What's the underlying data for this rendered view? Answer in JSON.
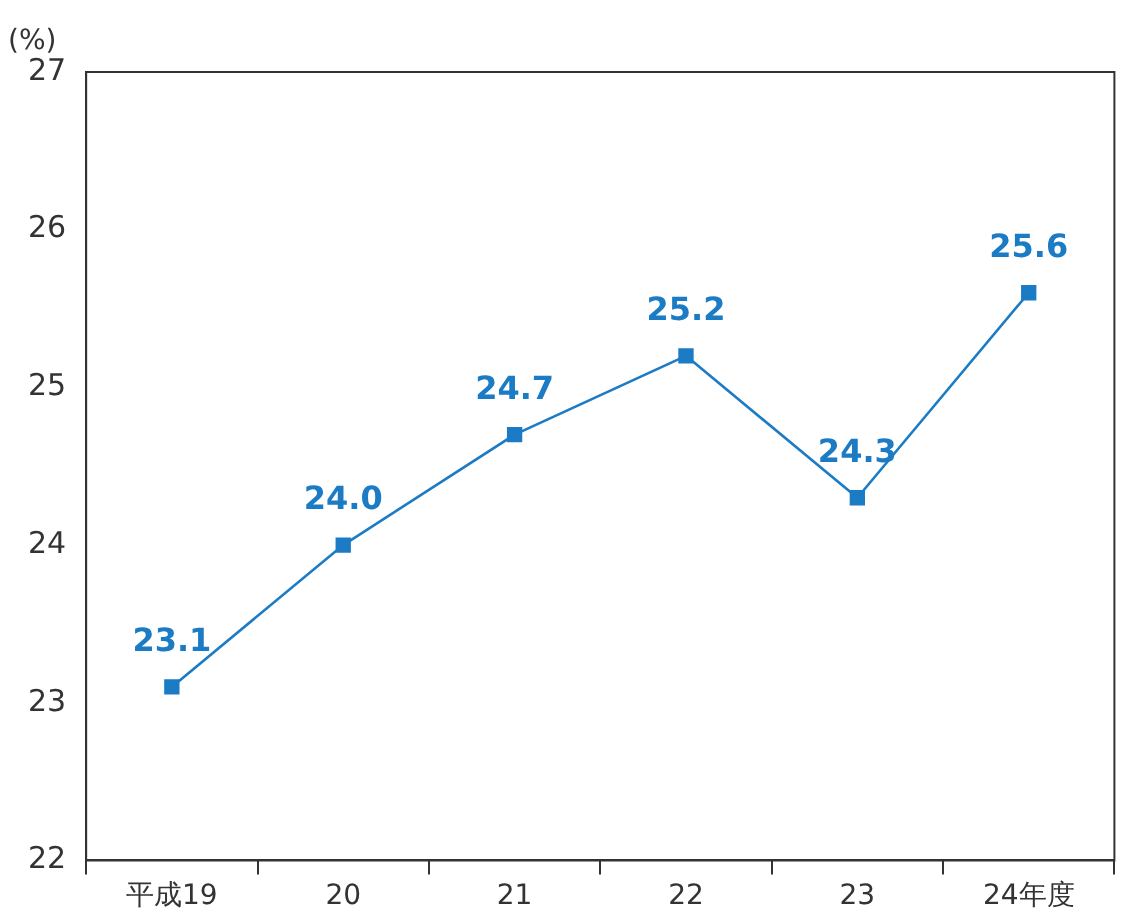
{
  "chart_data": {
    "type": "line",
    "ylabel": "(%)",
    "categories": [
      "平成19",
      "20",
      "21",
      "22",
      "23",
      "24年度"
    ],
    "series": [
      {
        "color": "#1b7bc4",
        "values": [
          23.1,
          24.0,
          24.7,
          25.2,
          24.3,
          25.6
        ],
        "value_labels": [
          "23.1",
          "24.0",
          "24.7",
          "25.2",
          "24.3",
          "25.6"
        ]
      }
    ],
    "ylim": [
      22,
      27
    ],
    "yticks": [
      22,
      23,
      24,
      25,
      26,
      27
    ],
    "grid": false,
    "legend": false,
    "marker": "square",
    "line_style": "solid"
  }
}
